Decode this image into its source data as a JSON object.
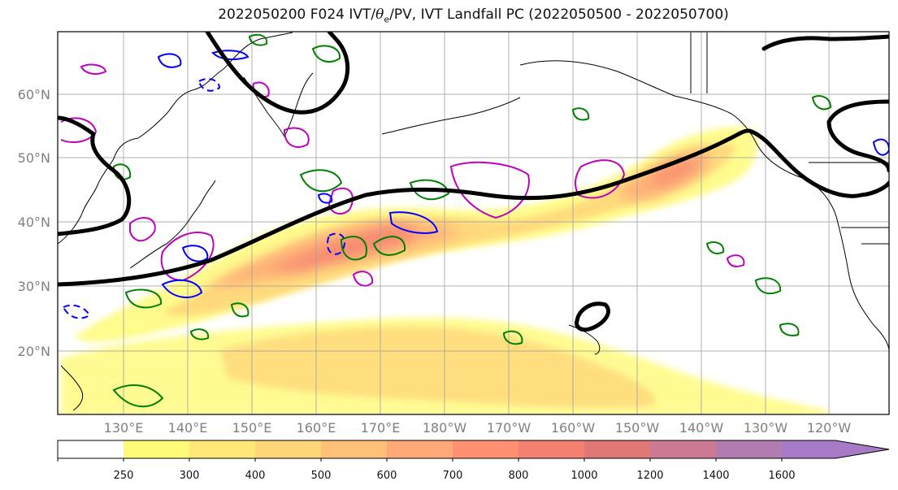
{
  "title": {
    "prefix": "2022050200 F024 IVT/",
    "theta_symbol": "θ",
    "theta_sub": "e",
    "suffix": "/PV, IVT Landfall PC (2022050500 - 2022050700)"
  },
  "map": {
    "lat_labels": [
      "20°N",
      "30°N",
      "40°N",
      "50°N",
      "60°N"
    ],
    "lon_labels": [
      "130°E",
      "140°E",
      "150°E",
      "160°E",
      "170°E",
      "180°W",
      "170°W",
      "160°W",
      "150°W",
      "140°W",
      "130°W",
      "120°W"
    ],
    "colors": {
      "frame": "#000000",
      "grid": "#9e9e9e",
      "coast": "#000000",
      "jet_contour": "#000000",
      "theta_contour": "#008000",
      "pv_contour": "#0000ff",
      "magenta_contour": "#bf00bf"
    }
  },
  "colorbar": {
    "levels": [
      "250",
      "300",
      "400",
      "500",
      "600",
      "700",
      "800",
      "1000",
      "1200",
      "1400",
      "1600"
    ],
    "colors": [
      "#ffffff",
      "#fffb78",
      "#ffe877",
      "#ffd57a",
      "#ffc07a",
      "#ffa978",
      "#ff9072",
      "#f48070",
      "#e07876",
      "#cc7a94",
      "#b27cb0",
      "#a67ac6"
    ],
    "extend": "max"
  }
}
